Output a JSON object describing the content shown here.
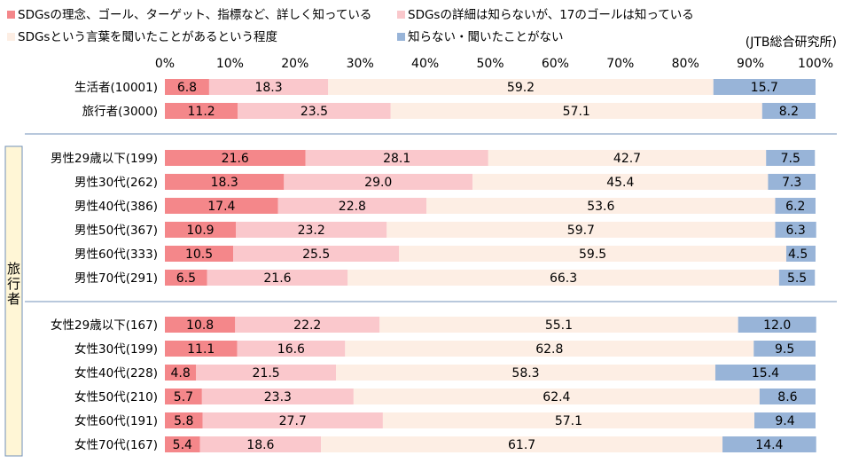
{
  "chart_data": {
    "type": "bar",
    "orientation": "horizontal",
    "stacked": "percent",
    "source_note": "(JTB総合研究所)",
    "side_label": "旅行者",
    "xlim": [
      0,
      100
    ],
    "x_ticks": [
      "0%",
      "10%",
      "20%",
      "30%",
      "40%",
      "50%",
      "60%",
      "70%",
      "80%",
      "90%",
      "100%"
    ],
    "legend_placement": "top",
    "categories": [
      "生活者(10001)",
      "旅行者(3000)",
      "男性29歳以下(199)",
      "男性30代(262)",
      "男性40代(386)",
      "男性50代(367)",
      "男性60代(333)",
      "男性70代(291)",
      "女性29歳以下(167)",
      "女性30代(199)",
      "女性40代(228)",
      "女性50代(210)",
      "女性60代(191)",
      "女性70代(167)"
    ],
    "series": [
      {
        "name": "SDGsの理念、ゴール、ターゲット、指標など、詳しく知っている",
        "color": "#f4878a",
        "values": [
          6.8,
          11.2,
          21.6,
          18.3,
          17.4,
          10.9,
          10.5,
          6.5,
          10.8,
          11.1,
          4.8,
          5.7,
          5.8,
          5.4
        ]
      },
      {
        "name": "SDGsの詳細は知らないが、17のゴールは知っている",
        "color": "#fac8cc",
        "values": [
          18.3,
          23.5,
          28.1,
          29.0,
          22.8,
          23.2,
          25.5,
          21.6,
          22.2,
          16.6,
          21.5,
          23.3,
          27.7,
          18.6
        ]
      },
      {
        "name": "SDGsという言葉を聞いたことがあるという程度",
        "color": "#fdeee4",
        "values": [
          59.2,
          57.1,
          42.7,
          45.4,
          53.6,
          59.7,
          59.5,
          66.3,
          55.1,
          62.8,
          58.3,
          62.4,
          57.1,
          61.7
        ]
      },
      {
        "name": "知らない・聞いたことがない",
        "color": "#98b4d8",
        "values": [
          15.7,
          8.2,
          7.5,
          7.3,
          6.2,
          6.3,
          4.5,
          5.5,
          12.0,
          9.5,
          15.4,
          8.6,
          9.4,
          14.4
        ]
      }
    ]
  }
}
